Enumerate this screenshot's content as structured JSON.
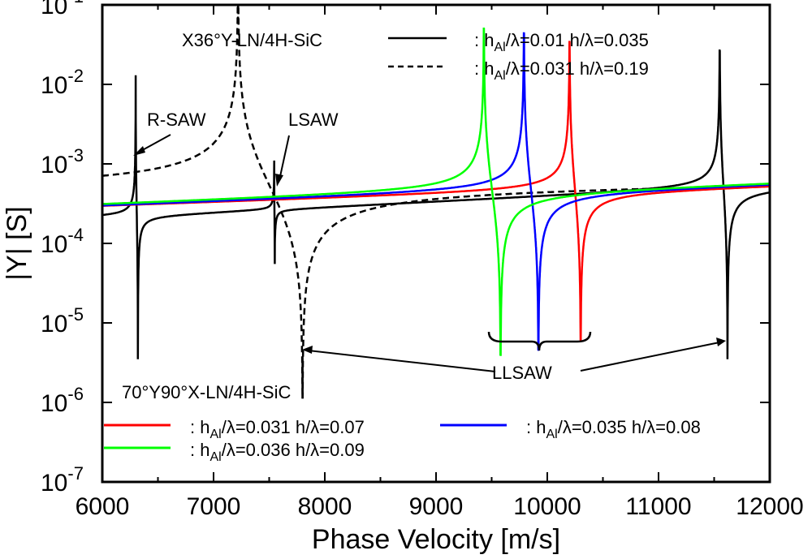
{
  "chart_data": {
    "type": "line",
    "title": "",
    "xlabel": "Phase  Velocity  [m/s]",
    "ylabel": "|Y|  [S]",
    "x_scale": "linear",
    "y_scale": "log",
    "xlim": [
      6000,
      12000
    ],
    "ylim_exponents": [
      -7,
      -1
    ],
    "x_ticks": [
      "6000",
      "7000",
      "8000",
      "9000",
      "10000",
      "11000",
      "12000"
    ],
    "y_ticks": [
      {
        "base": "10",
        "exp": "-7"
      },
      {
        "base": "10",
        "exp": "-6"
      },
      {
        "base": "10",
        "exp": "-5"
      },
      {
        "base": "10",
        "exp": "-4"
      },
      {
        "base": "10",
        "exp": "-3"
      },
      {
        "base": "10",
        "exp": "-2"
      },
      {
        "base": "10",
        "exp": "-1"
      }
    ],
    "grid": false,
    "legend_groups": [
      {
        "title": "X36°Y-LN/4H-SiC",
        "entries": [
          {
            "series": "x36_solid",
            "prefix": ":  h",
            "sub": "Al",
            "text": "/λ=0.01  h/λ=0.035"
          },
          {
            "series": "x36_dashed",
            "prefix": ":  h",
            "sub": "Al",
            "text": "/λ=0.031  h/λ=0.19"
          }
        ]
      },
      {
        "title": "70°Y90°X-LN/4H-SiC",
        "entries": [
          {
            "series": "red",
            "prefix": ":  h",
            "sub": "Al",
            "text": "/λ=0.031  h/λ=0.07"
          },
          {
            "series": "blue",
            "prefix": ":  h",
            "sub": "Al",
            "text": "/λ=0.035  h/λ=0.08"
          },
          {
            "series": "green",
            "prefix": ":  h",
            "sub": "Al",
            "text": "/λ=0.036  h/λ=0.09"
          }
        ]
      }
    ],
    "annotations": [
      {
        "text": "R-SAW",
        "x": 6300
      },
      {
        "text": "LSAW",
        "x": 7550
      },
      {
        "text": "LLSAW",
        "x": [
          7800,
          9580,
          9920,
          10300,
          11620
        ]
      }
    ],
    "series": [
      {
        "id": "x36_solid",
        "color": "#000000",
        "dash": "solid",
        "baseline": {
          "x": [
            6000,
            12000
          ],
          "y": [
            0.00021,
            0.00052
          ]
        },
        "resonances": [
          {
            "fr": 6300,
            "fa": 6320,
            "peak": 0.013,
            "dip": 3.5e-06
          },
          {
            "fr": 7545,
            "fa": 7550,
            "peak": 0.0011,
            "dip": 5.5e-05
          },
          {
            "fr": 11550,
            "fa": 11620,
            "peak": 0.025,
            "dip": 3.5e-06
          }
        ]
      },
      {
        "id": "x36_dashed",
        "color": "#000000",
        "dash": "dashed",
        "baseline": {
          "x": [
            6000,
            12000
          ],
          "y": [
            0.00048,
            0.0006
          ]
        },
        "resonances": [
          {
            "fr": 7220,
            "fa": 7800,
            "peak": 0.055,
            "dip": 3.8e-06
          }
        ]
      },
      {
        "id": "red",
        "color": "#ff0000",
        "dash": "solid",
        "baseline": {
          "x": [
            6000,
            12000
          ],
          "y": [
            0.00029,
            0.00055
          ]
        },
        "resonances": [
          {
            "fr": 10200,
            "fa": 10300,
            "peak": 0.0165,
            "dip": 1.1e-05
          }
        ]
      },
      {
        "id": "blue",
        "color": "#0000ff",
        "dash": "solid",
        "baseline": {
          "x": [
            6000,
            12000
          ],
          "y": [
            0.00029,
            0.00058
          ]
        },
        "resonances": [
          {
            "fr": 9790,
            "fa": 9920,
            "peak": 0.0165,
            "dip": 1.1e-05
          }
        ]
      },
      {
        "id": "green",
        "color": "#00ff00",
        "dash": "solid",
        "baseline": {
          "x": [
            6000,
            12000
          ],
          "y": [
            0.0003,
            0.0006
          ]
        },
        "resonances": [
          {
            "fr": 9430,
            "fa": 9580,
            "peak": 0.0165,
            "dip": 1.1e-05
          }
        ]
      }
    ]
  }
}
